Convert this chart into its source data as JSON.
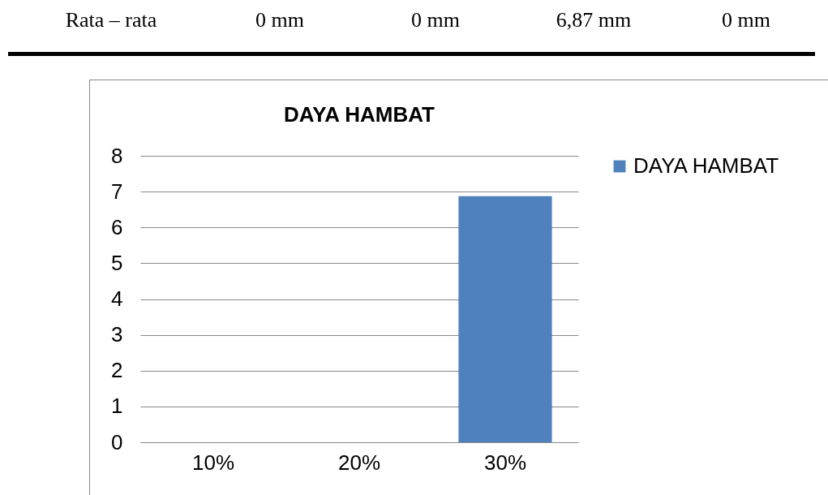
{
  "chart_data": {
    "type": "bar",
    "title": "DAYA HAMBAT",
    "annotations": [
      "Rata – rata",
      "0 mm",
      "0 mm",
      "6,87 mm",
      "0 mm"
    ],
    "categories": [
      "10%",
      "20%",
      "30%"
    ],
    "series": [
      {
        "name": "DAYA HAMBAT",
        "color": "#4f81bd",
        "values": [
          0,
          0,
          6.87
        ]
      }
    ],
    "ylim": [
      0,
      8
    ],
    "yticks": [
      0,
      1,
      2,
      3,
      4,
      5,
      6,
      7,
      8
    ],
    "grid": "y",
    "legend": "right"
  }
}
